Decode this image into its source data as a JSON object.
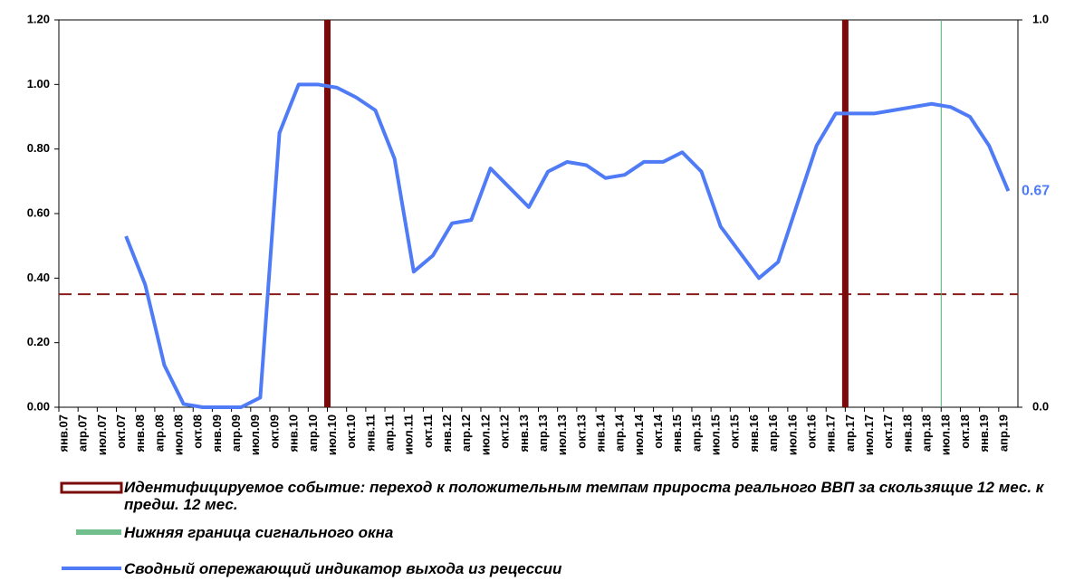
{
  "chart_data": {
    "type": "line",
    "categories": [
      "янв.07",
      "апр.07",
      "июл.07",
      "окт.07",
      "янв.08",
      "апр.08",
      "июл.08",
      "окт.08",
      "янв.09",
      "апр.09",
      "июл.09",
      "окт.09",
      "янв.10",
      "апр.10",
      "июл.10",
      "окт.10",
      "янв.11",
      "апр.11",
      "июл.11",
      "окт.11",
      "янв.12",
      "апр.12",
      "июл.12",
      "окт.12",
      "янв.13",
      "апр.13",
      "июл.13",
      "окт.13",
      "янв.14",
      "апр.14",
      "июл.14",
      "окт.14",
      "янв.15",
      "апр.15",
      "июл.15",
      "окт.15",
      "янв.16",
      "апр.16",
      "июл.16",
      "окт.16",
      "янв.17",
      "апр.17",
      "июл.17",
      "окт.17",
      "янв.18",
      "апр.18",
      "июл.18",
      "окт.18",
      "янв.19",
      "апр.19"
    ],
    "series": [
      {
        "name": "Сводный опережающий индикатор выхода из рецессии",
        "color": "#4f7cf6",
        "values": [
          null,
          null,
          null,
          0.53,
          0.38,
          0.13,
          0.01,
          0,
          0,
          0,
          0.03,
          0.85,
          1.0,
          1.0,
          0.99,
          0.96,
          0.92,
          0.77,
          0.42,
          0.47,
          0.57,
          0.58,
          0.74,
          0.68,
          0.62,
          0.73,
          0.76,
          0.75,
          0.71,
          0.72,
          0.76,
          0.76,
          0.79,
          0.73,
          0.56,
          0.48,
          0.4,
          0.45,
          0.63,
          0.81,
          0.91,
          0.91,
          0.91,
          0.92,
          0.93,
          0.94,
          0.93,
          0.9,
          0.81,
          0.67
        ],
        "value_labels": [
          null,
          null,
          null,
          null,
          null,
          null,
          null,
          null,
          null,
          null,
          null,
          null,
          null,
          null,
          null,
          null,
          null,
          null,
          null,
          null,
          null,
          null,
          null,
          null,
          null,
          null,
          null,
          null,
          null,
          null,
          null,
          null,
          null,
          null,
          null,
          null,
          null,
          null,
          null,
          null,
          null,
          null,
          null,
          null,
          null,
          null,
          null,
          null,
          null,
          "0.67"
        ]
      }
    ],
    "ylim": [
      0,
      1.2
    ],
    "yticks": [
      {
        "value": 0,
        "label": "0.00"
      },
      {
        "value": 0.2,
        "label": "0.20"
      },
      {
        "value": 0.4,
        "label": "0.40"
      },
      {
        "value": 0.6,
        "label": "0.60"
      },
      {
        "value": 0.8,
        "label": "0.80"
      },
      {
        "value": 1,
        "label": "1.00"
      },
      {
        "value": 1.2,
        "label": "1.20"
      }
    ],
    "y2lim": [
      0,
      1
    ],
    "y2ticks": [
      {
        "value": 0,
        "label": "0.0"
      },
      {
        "value": 1,
        "label": "1.0"
      }
    ],
    "threshold": {
      "value": 0.35,
      "color": "#8b1a1a"
    },
    "events": {
      "name": "Идентифицируемое событие: переход к положительным темпам прироста реального ВВП за скользящие 12 мес. к предш. 12 мес.",
      "color": "#7b0a0a",
      "categories": [
        "июл.10",
        "апр.17"
      ]
    },
    "window": {
      "name": "Нижняя граница сигнального окна",
      "color": "#4caf70",
      "categories": [
        "июл.18"
      ]
    }
  }
}
